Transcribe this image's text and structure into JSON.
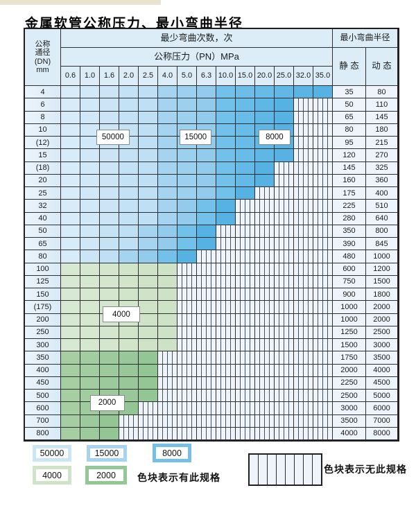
{
  "title": "金属软管公称压力、最小弯曲半径",
  "table": {
    "header": {
      "dn_label_lines": [
        "公称",
        "通径",
        "(DN)",
        "mm"
      ],
      "cycles_header": "最少弯曲次数，次",
      "pressure_header": "公称压力（PN）MPa",
      "radius_header": "最小弯曲半径",
      "static_label": "静 态",
      "dynamic_label": "动 态",
      "pressures": [
        "0.6",
        "1.0",
        "1.6",
        "2.0",
        "2.5",
        "4.0",
        "5.0",
        "6.3",
        "10.0",
        "15.0",
        "20.0",
        "25.0",
        "32.0",
        "35.0"
      ]
    },
    "overlay_labels": [
      {
        "text": "50000"
      },
      {
        "text": "15000"
      },
      {
        "text": "8000"
      },
      {
        "text": "4000"
      },
      {
        "text": "2000"
      }
    ]
  },
  "legend": {
    "items": [
      {
        "label": "50000",
        "color": "#c9e5f6"
      },
      {
        "label": "15000",
        "color": "#a6d4f0"
      },
      {
        "label": "8000",
        "color": "#74c0e8"
      },
      {
        "label": "4000",
        "color": "#cfe3c9"
      },
      {
        "label": "2000",
        "color": "#92c893"
      }
    ],
    "has_spec_text": "色块表示有此规格",
    "no_spec_text": "色块表示无此规格"
  },
  "colors": {
    "blue_light_start": "#d7ebf9",
    "blue_light_end": "#bedff4",
    "blue_mid_start": "#a4d4f0",
    "blue_mid_end": "#93cbed",
    "blue_dark_start": "#72c1ea",
    "blue_dark_end": "#55b2e3",
    "green_4000_start": "#d8e9d3",
    "green_4000_end": "#cde2c6",
    "green_2000_start": "#a5cfa3",
    "green_2000_end": "#94c595",
    "hatch_bg": "#eff4fb",
    "grid": "#2e2e2e"
  },
  "chart_data": {
    "type": "table",
    "title": "金属软管公称压力、最小弯曲半径",
    "pressure_columns_MPa": [
      0.6,
      1.0,
      1.6,
      2.0,
      2.5,
      4.0,
      5.0,
      6.3,
      10.0,
      15.0,
      20.0,
      25.0,
      32.0,
      35.0
    ],
    "legend_meaning": {
      "colored": "色块表示有此规格",
      "hatched": "色块表示无此规格"
    },
    "bend_cycle_bands": [
      "50000",
      "15000",
      "8000",
      "4000",
      "2000"
    ],
    "blue_zone_cycles_by_pressure": {
      "50000": "0.6-2.5",
      "15000": "4.0-6.3",
      "8000": "10.0-35.0"
    },
    "rows": [
      {
        "dn": "4",
        "band": "blue",
        "max_pn": "35.0",
        "static": "35",
        "dynamic": "80"
      },
      {
        "dn": "6",
        "band": "blue",
        "max_pn": "25.0",
        "static": "50",
        "dynamic": "110"
      },
      {
        "dn": "8",
        "band": "blue",
        "max_pn": "25.0",
        "static": "65",
        "dynamic": "145"
      },
      {
        "dn": "10",
        "band": "blue",
        "max_pn": "25.0",
        "static": "80",
        "dynamic": "180"
      },
      {
        "dn": "(12)",
        "band": "blue",
        "max_pn": "25.0",
        "static": "95",
        "dynamic": "215"
      },
      {
        "dn": "15",
        "band": "blue",
        "max_pn": "25.0",
        "static": "120",
        "dynamic": "270"
      },
      {
        "dn": "(18)",
        "band": "blue",
        "max_pn": "20.0",
        "static": "145",
        "dynamic": "325"
      },
      {
        "dn": "20",
        "band": "blue",
        "max_pn": "20.0",
        "static": "160",
        "dynamic": "360"
      },
      {
        "dn": "25",
        "band": "blue",
        "max_pn": "15.0",
        "static": "175",
        "dynamic": "400"
      },
      {
        "dn": "32",
        "band": "blue",
        "max_pn": "10.0",
        "static": "225",
        "dynamic": "510"
      },
      {
        "dn": "40",
        "band": "blue",
        "max_pn": "10.0",
        "static": "280",
        "dynamic": "640"
      },
      {
        "dn": "50",
        "band": "blue",
        "max_pn": "6.3",
        "static": "350",
        "dynamic": "800"
      },
      {
        "dn": "65",
        "band": "blue",
        "max_pn": "6.3",
        "static": "390",
        "dynamic": "845"
      },
      {
        "dn": "80",
        "band": "blue",
        "max_pn": "5.0",
        "static": "480",
        "dynamic": "1000"
      },
      {
        "dn": "100",
        "band": "4000",
        "max_pn": "4.0",
        "static": "600",
        "dynamic": "1200"
      },
      {
        "dn": "125",
        "band": "4000",
        "max_pn": "4.0",
        "static": "750",
        "dynamic": "1500"
      },
      {
        "dn": "150",
        "band": "4000",
        "max_pn": "4.0",
        "static": "900",
        "dynamic": "1800"
      },
      {
        "dn": "(175)",
        "band": "4000",
        "max_pn": "4.0",
        "static": "1000",
        "dynamic": "2000"
      },
      {
        "dn": "200",
        "band": "4000",
        "max_pn": "4.0",
        "static": "1000",
        "dynamic": "2000"
      },
      {
        "dn": "250",
        "band": "4000",
        "max_pn": "4.0",
        "static": "1250",
        "dynamic": "2500"
      },
      {
        "dn": "300",
        "band": "4000",
        "max_pn": "4.0",
        "static": "1500",
        "dynamic": "3000"
      },
      {
        "dn": "350",
        "band": "2000",
        "max_pn": "2.5",
        "static": "1750",
        "dynamic": "3500"
      },
      {
        "dn": "400",
        "band": "2000",
        "max_pn": "2.5",
        "static": "2000",
        "dynamic": "4000"
      },
      {
        "dn": "450",
        "band": "2000",
        "max_pn": "2.5",
        "static": "2250",
        "dynamic": "4500"
      },
      {
        "dn": "500",
        "band": "2000",
        "max_pn": "2.5",
        "static": "2500",
        "dynamic": "5000"
      },
      {
        "dn": "600",
        "band": "2000",
        "max_pn": "2.0",
        "static": "3000",
        "dynamic": "6000"
      },
      {
        "dn": "700",
        "band": "2000",
        "max_pn": "1.6",
        "static": "3500",
        "dynamic": "7000"
      },
      {
        "dn": "800",
        "band": "2000",
        "max_pn": "1.6",
        "static": "4000",
        "dynamic": "8000"
      }
    ]
  }
}
